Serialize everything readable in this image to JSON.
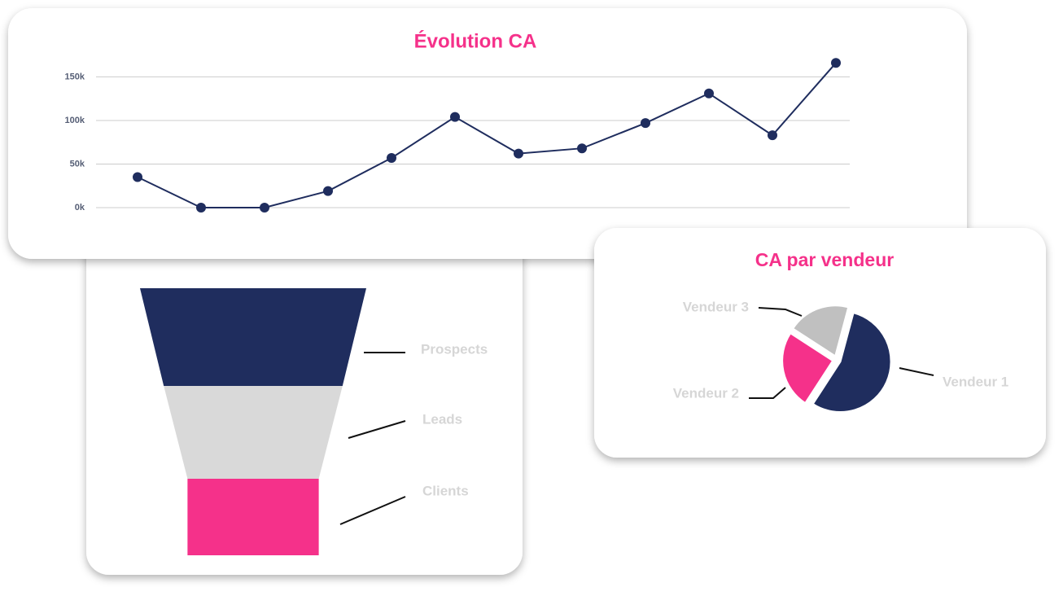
{
  "chart_data": [
    {
      "type": "line",
      "title": "Évolution CA",
      "categories": [
        null,
        null,
        null,
        null,
        null,
        null,
        null,
        null,
        null,
        null,
        null,
        null
      ],
      "values": [
        35000,
        0,
        0,
        19000,
        57000,
        104000,
        62000,
        68000,
        97000,
        131000,
        83000,
        166000
      ],
      "color": "#1f2d5e",
      "ylim": [
        0,
        170000
      ],
      "yticks": [
        {
          "value": 0,
          "label": "0k"
        },
        {
          "value": 50000,
          "label": "50k"
        },
        {
          "value": 100000,
          "label": "100k"
        },
        {
          "value": 150000,
          "label": "150k"
        }
      ],
      "grid": true
    },
    {
      "type": "funnel",
      "categories": [
        "Prospects",
        "Leads",
        "Clients"
      ],
      "values": [
        100,
        79,
        58
      ],
      "colors": [
        "#1f2d5e",
        "#d9d9d9",
        "#f5318a"
      ]
    },
    {
      "type": "pie",
      "title": "CA par vendeur",
      "categories": [
        "Vendeur 1",
        "Vendeur 2",
        "Vendeur 3"
      ],
      "values": [
        55,
        25,
        20
      ],
      "colors": [
        "#1f2d5e",
        "#f5318a",
        "#c0c0c0"
      ]
    }
  ]
}
